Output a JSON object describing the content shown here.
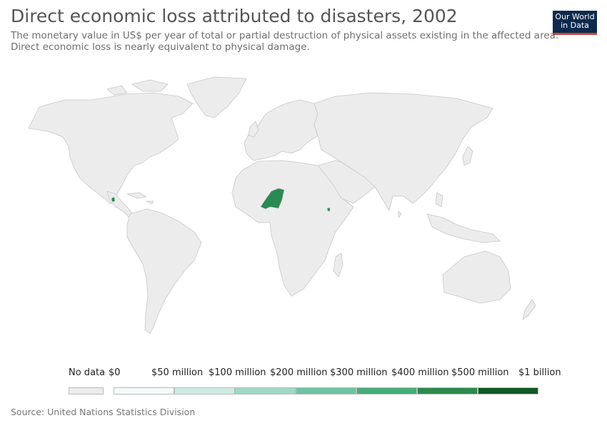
{
  "header": {
    "title": "Direct economic loss attributed to disasters, 2002",
    "subtitle_line1": "The monetary value in US$ per year of total or partial destruction of physical assets existing in the affected area.",
    "subtitle_line2": "Direct economic loss is nearly equivalent to physical damage."
  },
  "logo": {
    "line1": "Our World",
    "line2": "in Data"
  },
  "map": {
    "no_data_color": "#ececec",
    "border_color": "#c8c8c8",
    "highlight_color": "#2a8a52",
    "highlighted": [
      "Niger",
      "Guatemala",
      "Djibouti"
    ]
  },
  "legend": {
    "no_data_label": "No data",
    "bins": [
      {
        "label": "$0",
        "color": "#f4fbfb"
      },
      {
        "label": "$50 million",
        "color": "#cdebe3"
      },
      {
        "label": "$100 million",
        "color": "#9fd8c6"
      },
      {
        "label": "$200 million",
        "color": "#6cc3a3"
      },
      {
        "label": "$300 million",
        "color": "#45ac7a"
      },
      {
        "label": "$400 million",
        "color": "#2b8a4d"
      },
      {
        "label": "$500 million",
        "color": "#0e5a26"
      },
      {
        "label": "$1 billion",
        "color": ""
      }
    ]
  },
  "footer": {
    "source": "Source: United Nations Statistics Division"
  }
}
